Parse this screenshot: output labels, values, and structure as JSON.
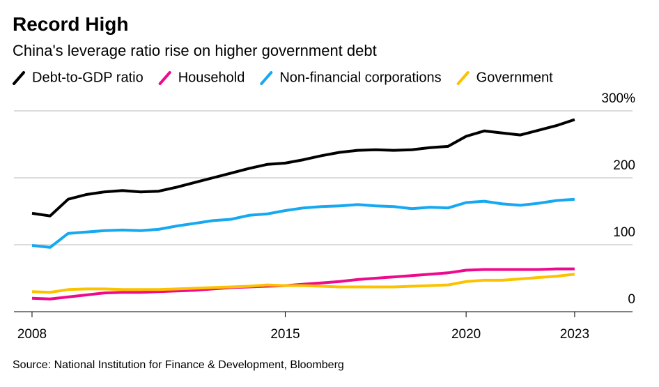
{
  "chart_data": {
    "type": "line",
    "title": "Record High",
    "subtitle": "China's leverage ratio rise on higher government debt",
    "source": "Source: National Institution for Finance & Development, Bloomberg",
    "x": [
      2008,
      2008.5,
      2009,
      2009.5,
      2010,
      2010.5,
      2011,
      2011.5,
      2012,
      2012.5,
      2013,
      2013.5,
      2014,
      2014.5,
      2015,
      2015.5,
      2016,
      2016.5,
      2017,
      2017.5,
      2018,
      2018.5,
      2019,
      2019.5,
      2020,
      2020.5,
      2021,
      2021.5,
      2022,
      2022.5,
      2023
    ],
    "series": [
      {
        "name": "Debt-to-GDP ratio",
        "color": "#000000",
        "values": [
          147,
          143,
          168,
          175,
          179,
          181,
          179,
          180,
          186,
          193,
          200,
          207,
          214,
          220,
          222,
          227,
          233,
          238,
          241,
          242,
          241,
          242,
          245,
          247,
          262,
          270,
          267,
          264,
          271,
          278,
          287
        ]
      },
      {
        "name": "Household",
        "color": "#ee0a8c",
        "values": [
          20,
          19,
          22,
          25,
          28,
          29,
          29,
          30,
          31,
          32,
          34,
          36,
          37,
          38,
          39,
          41,
          43,
          45,
          48,
          50,
          52,
          54,
          56,
          58,
          62,
          63,
          63,
          63,
          63,
          64,
          64
        ]
      },
      {
        "name": "Non-financial corporations",
        "color": "#16a8f0",
        "values": [
          99,
          96,
          117,
          119,
          121,
          122,
          121,
          123,
          128,
          132,
          136,
          138,
          144,
          146,
          151,
          155,
          157,
          158,
          160,
          158,
          157,
          154,
          156,
          155,
          163,
          165,
          161,
          159,
          162,
          166,
          168
        ]
      },
      {
        "name": "Government",
        "color": "#fcc200",
        "values": [
          30,
          29,
          33,
          34,
          34,
          33,
          33,
          33,
          34,
          35,
          36,
          37,
          38,
          40,
          39,
          39,
          38,
          37,
          37,
          37,
          37,
          38,
          39,
          40,
          45,
          47,
          47,
          49,
          51,
          53,
          56
        ]
      }
    ],
    "xlim": [
      2007.5,
      2024.6
    ],
    "xticks": [
      2008,
      2015,
      2020,
      2023
    ],
    "ylim": [
      0,
      300
    ],
    "yticks": [
      0,
      100,
      200,
      {
        "value": 300,
        "label": "300%"
      }
    ],
    "grid": true
  }
}
